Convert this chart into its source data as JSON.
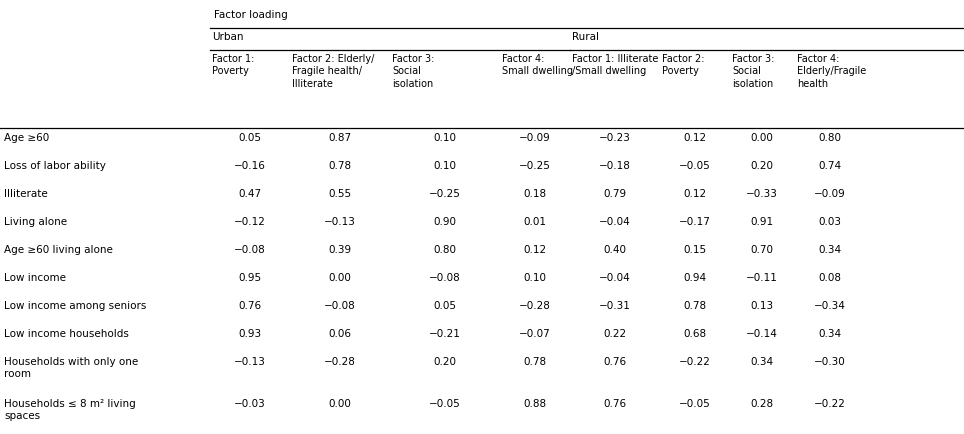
{
  "urban_factors": [
    "Factor 1:\nPoverty",
    "Factor 2: Elderly/\nFragile health/\nIlliterate",
    "Factor 3:\nSocial\nisolation",
    "Factor 4:\nSmall dwelling"
  ],
  "rural_factors": [
    "Factor 1: Illiterate\n/Small dwelling",
    "Factor 2:\nPoverty",
    "Factor 3:\nSocial\nisolation",
    "Factor 4:\nElderly/Fragile\nhealth"
  ],
  "row_labels": [
    "Age ≥60",
    "Loss of labor ability",
    "Illiterate",
    "Living alone",
    "Age ≥60 living alone",
    "Low income",
    "Low income among seniors",
    "Low income households",
    "Households with only one\nroom",
    "Households ≤ 8 m² living\nspaces"
  ],
  "data": [
    [
      0.05,
      0.87,
      0.1,
      -0.09,
      -0.23,
      0.12,
      0.0,
      0.8
    ],
    [
      -0.16,
      0.78,
      0.1,
      -0.25,
      -0.18,
      -0.05,
      0.2,
      0.74
    ],
    [
      0.47,
      0.55,
      -0.25,
      0.18,
      0.79,
      0.12,
      -0.33,
      -0.09
    ],
    [
      -0.12,
      -0.13,
      0.9,
      0.01,
      -0.04,
      -0.17,
      0.91,
      0.03
    ],
    [
      -0.08,
      0.39,
      0.8,
      0.12,
      0.4,
      0.15,
      0.7,
      0.34
    ],
    [
      0.95,
      0.0,
      -0.08,
      0.1,
      -0.04,
      0.94,
      -0.11,
      0.08
    ],
    [
      0.76,
      -0.08,
      0.05,
      -0.28,
      -0.31,
      0.78,
      0.13,
      -0.34
    ],
    [
      0.93,
      0.06,
      -0.21,
      -0.07,
      0.22,
      0.68,
      -0.14,
      0.34
    ],
    [
      -0.13,
      -0.28,
      0.2,
      0.78,
      0.76,
      -0.22,
      0.34,
      -0.3
    ],
    [
      -0.03,
      0.0,
      -0.05,
      0.88,
      0.76,
      -0.05,
      0.28,
      -0.22
    ]
  ],
  "background_color": "#ffffff",
  "text_color": "#000000",
  "line_color": "#000000",
  "font_size": 7.5,
  "header_font_size": 7.5
}
